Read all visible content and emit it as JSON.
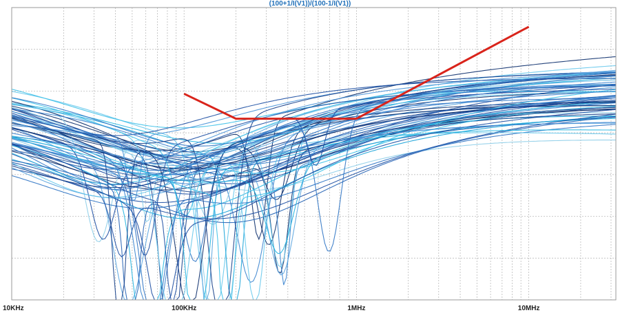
{
  "chart_data": {
    "type": "line",
    "title": "(100+1/I(V1))/(100-1/I(V1))",
    "x_scale": "log",
    "x_range_hz": [
      10000,
      32000000
    ],
    "x_ticks": [
      {
        "value": 10000,
        "label": "10KHz"
      },
      {
        "value": 100000,
        "label": "100KHz"
      },
      {
        "value": 1000000,
        "label": "1MHz"
      },
      {
        "value": 10000000,
        "label": "10MHz"
      }
    ],
    "y_ticks_labeled": false,
    "grid": true,
    "limit_line": {
      "color": "#d9241b",
      "x": [
        100000,
        200000,
        1000000,
        10000000
      ],
      "y": [
        2.66,
        1.49,
        1.49,
        5.8
      ]
    },
    "family": {
      "count": 70,
      "notch_fraction": 0.55,
      "colors": [
        "#0b2e6b",
        "#153f8a",
        "#1d4fa3",
        "#2563b5",
        "#2f74c4",
        "#3b84cf",
        "#4a94d8",
        "#5aa4df",
        "#1aa3d8",
        "#25b5e0",
        "#3cc0e8",
        "#66c8ec",
        "#8ccde8",
        "#2a5a9e"
      ]
    },
    "ylim": [
      -7.0,
      6.7
    ]
  }
}
